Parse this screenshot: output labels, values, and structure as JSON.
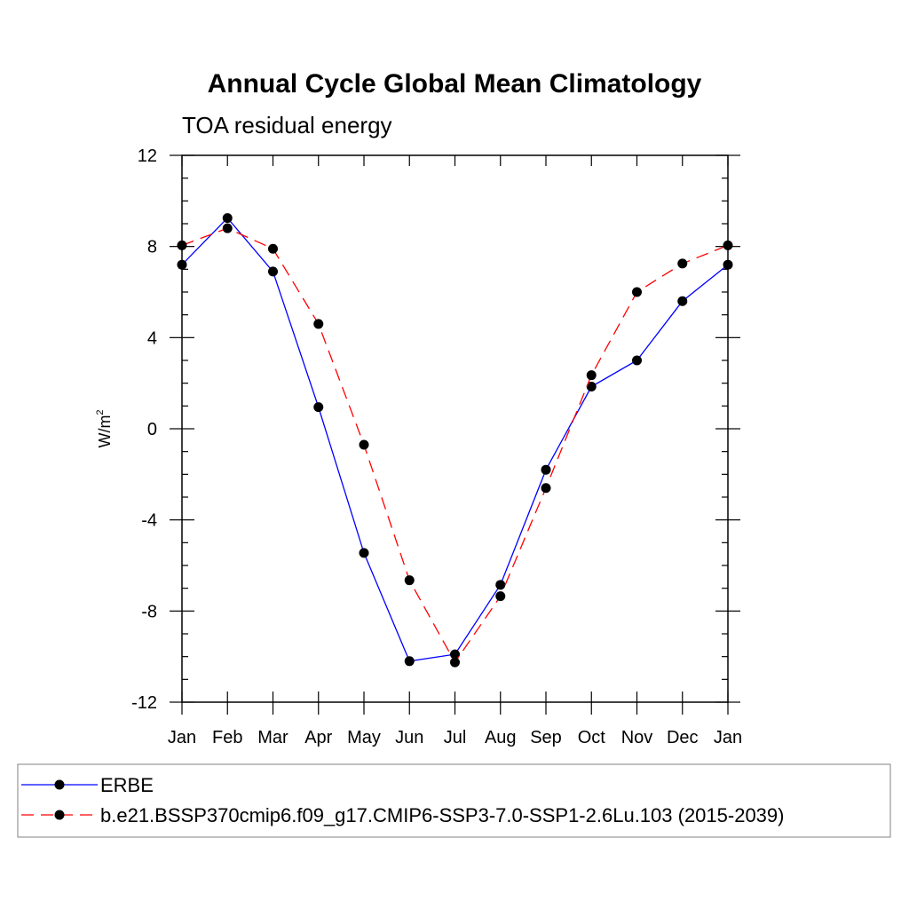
{
  "chart_data": {
    "type": "line",
    "title": "Annual Cycle Global Mean Climatology",
    "subtitle": "TOA residual energy",
    "xlabel": "",
    "ylabel_base": "W/m",
    "ylabel_sup": "2",
    "categories": [
      "Jan",
      "Feb",
      "Mar",
      "Apr",
      "May",
      "Jun",
      "Jul",
      "Aug",
      "Sep",
      "Oct",
      "Nov",
      "Dec",
      "Jan"
    ],
    "ylim": [
      -12,
      12
    ],
    "yticks": [
      12,
      8,
      4,
      0,
      -4,
      -8,
      -12
    ],
    "ytick_labels": [
      "12",
      "8",
      "4",
      "0",
      "-4",
      "-8",
      "-12"
    ],
    "grid": false,
    "legend_position": "bottom",
    "series": [
      {
        "name": "ERBE",
        "color": "#0000ff",
        "dash": "solid",
        "marker": "filled-circle",
        "values": [
          7.2,
          9.25,
          6.9,
          0.95,
          -5.45,
          -10.2,
          -9.9,
          -6.85,
          -1.8,
          1.85,
          3.0,
          5.6,
          7.2
        ]
      },
      {
        "name": "b.e21.BSSP370cmip6.f09_g17.CMIP6-SSP3-7.0-SSP1-2.6Lu.103 (2015-2039)",
        "color": "#ff0000",
        "dash": "dashed",
        "marker": "filled-circle",
        "values": [
          8.05,
          8.8,
          7.9,
          4.6,
          -0.7,
          -6.65,
          -10.25,
          -7.35,
          -2.6,
          2.35,
          6.0,
          7.25,
          8.05
        ]
      }
    ]
  }
}
